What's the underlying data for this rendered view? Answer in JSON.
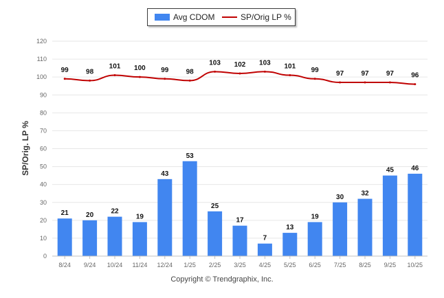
{
  "chart_data": {
    "type": "bar",
    "categories": [
      "8/24",
      "9/24",
      "10/24",
      "11/24",
      "12/24",
      "1/25",
      "2/25",
      "3/25",
      "4/25",
      "5/25",
      "6/25",
      "7/25",
      "8/25",
      "9/25",
      "10/25"
    ],
    "series": [
      {
        "name": "Avg CDOM",
        "type": "bar",
        "color": "#4186f0",
        "values": [
          21,
          20,
          22,
          19,
          43,
          53,
          25,
          17,
          7,
          13,
          19,
          30,
          32,
          45,
          46
        ]
      },
      {
        "name": "SP/Orig LP %",
        "type": "line",
        "color": "#c00000",
        "values": [
          99,
          98,
          101,
          100,
          99,
          98,
          103,
          102,
          103,
          101,
          99,
          97,
          97,
          97,
          96
        ]
      }
    ],
    "ylabel": "SP/Orig. LP %",
    "ylim": [
      0,
      120
    ],
    "yticks": [
      0,
      10,
      20,
      30,
      40,
      50,
      60,
      70,
      80,
      90,
      100,
      110,
      120
    ],
    "legend_position": "top-center",
    "grid": true
  },
  "footer": {
    "copyright": "Copyright © Trendgraphix, Inc."
  }
}
